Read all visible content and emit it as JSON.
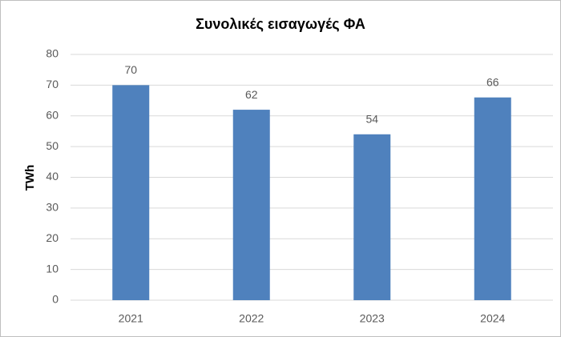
{
  "chart_data": {
    "type": "bar",
    "title": "Συνολικές εισαγωγές ΦΑ",
    "y_label": "TWh",
    "categories": [
      "2021",
      "2022",
      "2023",
      "2024"
    ],
    "values": [
      70,
      62,
      54,
      66
    ],
    "color": "#4f81bd",
    "ylim": [
      0,
      80
    ],
    "yticks": [
      0,
      10,
      20,
      30,
      40,
      50,
      60,
      70,
      80
    ],
    "grid": true,
    "data_labels": true
  }
}
